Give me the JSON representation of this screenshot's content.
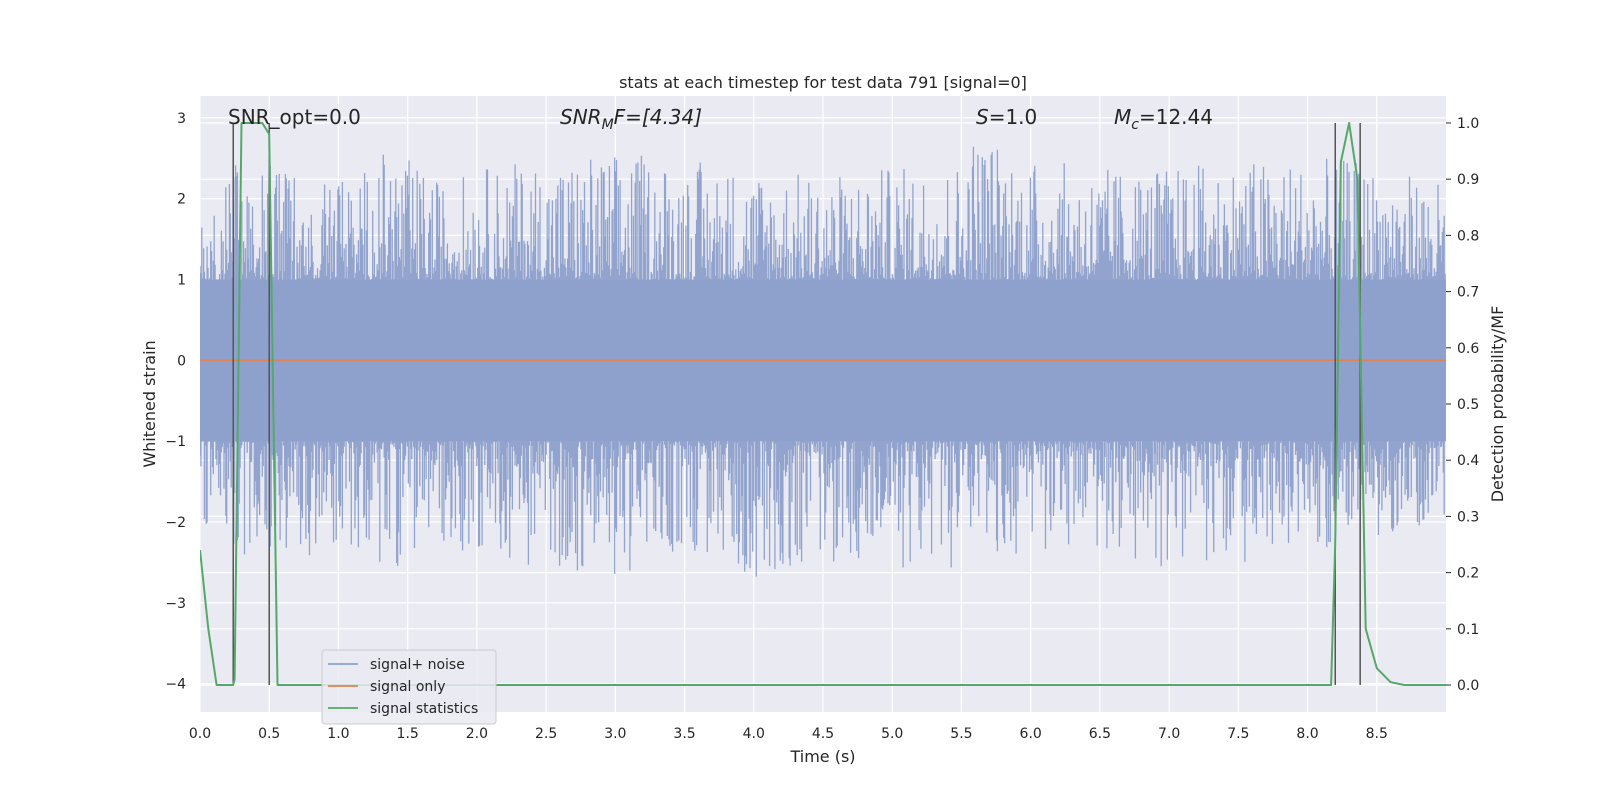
{
  "chart_data": {
    "type": "line",
    "title": "stats at each timestep for test data 791 [signal=0]",
    "xlabel": "Time (s)",
    "ylabel_left": "Whitened strain",
    "ylabel_right": "Detection probability/MF",
    "xlim": [
      0.0,
      9.0
    ],
    "ylim_left": [
      -4.35,
      3.27
    ],
    "ylim_right": [
      -0.048,
      1.048
    ],
    "xticks": [
      "0.0",
      "0.5",
      "1.0",
      "1.5",
      "2.0",
      "2.5",
      "3.0",
      "3.5",
      "4.0",
      "4.5",
      "5.0",
      "5.5",
      "6.0",
      "6.5",
      "7.0",
      "7.5",
      "8.0",
      "8.5"
    ],
    "yticks_left": [
      "3",
      "2",
      "1",
      "0",
      "−1",
      "−2",
      "−3",
      "−4"
    ],
    "yticks_right": [
      "1.0",
      "0.9",
      "0.8",
      "0.7",
      "0.6",
      "0.5",
      "0.4",
      "0.3",
      "0.2",
      "0.1",
      "0.0"
    ],
    "grid": true,
    "legend_position": "lower-left",
    "colors": {
      "noise": "#8da0cb",
      "signal": "#dd8452",
      "stats": "#55a868",
      "vline": "#555555",
      "bg": "#eaeaf2"
    },
    "annotations": {
      "snr_opt": "SNR_opt=0.0",
      "snr_mf_base": "SNR",
      "snr_mf_sub": "M",
      "snr_mf_rest": "F=[4.34]",
      "s_label": "S",
      "s_value": "=1.0",
      "mc_base": "M",
      "mc_sub": "c",
      "mc_value": "=12.44"
    },
    "noise_envelope": {
      "x": [
        0.0,
        0.25,
        0.5,
        0.75,
        1.0,
        1.25,
        1.4,
        1.5,
        1.75,
        2.0,
        2.5,
        3.0,
        3.5,
        4.0,
        4.5,
        5.0,
        5.5,
        5.6,
        6.0,
        6.5,
        7.0,
        7.5,
        8.0,
        8.3,
        8.5,
        9.0
      ],
      "upper": [
        1.9,
        2.5,
        2.6,
        2.2,
        2.3,
        2.4,
        2.8,
        2.5,
        2.2,
        2.4,
        2.5,
        2.6,
        2.5,
        2.4,
        2.3,
        2.4,
        2.5,
        2.95,
        2.5,
        2.4,
        2.4,
        2.5,
        2.5,
        2.5,
        2.4,
        2.2
      ],
      "lower": [
        -2.1,
        -2.3,
        -2.8,
        -2.5,
        -2.3,
        -2.5,
        -2.6,
        -2.4,
        -2.3,
        -2.4,
        -2.6,
        -2.7,
        -2.4,
        -2.7,
        -2.5,
        -2.6,
        -2.6,
        -2.5,
        -2.4,
        -2.4,
        -2.6,
        -2.5,
        -2.4,
        -2.3,
        -2.2,
        -2.0
      ]
    },
    "series": [
      {
        "name": "signal+ noise",
        "axis": "left",
        "kind": "noise"
      },
      {
        "name": "signal only",
        "axis": "left",
        "x": [
          0.0,
          9.0
        ],
        "y": [
          0.0,
          0.0
        ]
      },
      {
        "name": "signal statistics",
        "axis": "right",
        "x": [
          0.0,
          0.06,
          0.12,
          0.24,
          0.25,
          0.3,
          0.4,
          0.45,
          0.5,
          0.56,
          0.6,
          1.0,
          2.0,
          3.0,
          4.0,
          5.0,
          6.0,
          7.0,
          8.0,
          8.17,
          8.2,
          8.24,
          8.3,
          8.36,
          8.42,
          8.5,
          8.6,
          8.7,
          9.0
        ],
        "y": [
          0.24,
          0.1,
          0.0,
          0.0,
          0.01,
          1.0,
          1.0,
          1.0,
          0.98,
          0.0,
          0.0,
          0.0,
          0.0,
          0.0,
          0.0,
          0.0,
          0.0,
          0.0,
          0.0,
          0.0,
          0.25,
          0.93,
          1.0,
          0.9,
          0.1,
          0.03,
          0.005,
          0.0,
          0.0
        ]
      }
    ],
    "vlines": [
      {
        "x": 0.24,
        "ymin": 0.0,
        "ymax": 1.0
      },
      {
        "x": 0.5,
        "ymin": 0.0,
        "ymax": 1.0
      },
      {
        "x": 8.2,
        "ymin": 0.0,
        "ymax": 1.0
      },
      {
        "x": 8.38,
        "ymin": 0.0,
        "ymax": 1.0
      }
    ]
  }
}
